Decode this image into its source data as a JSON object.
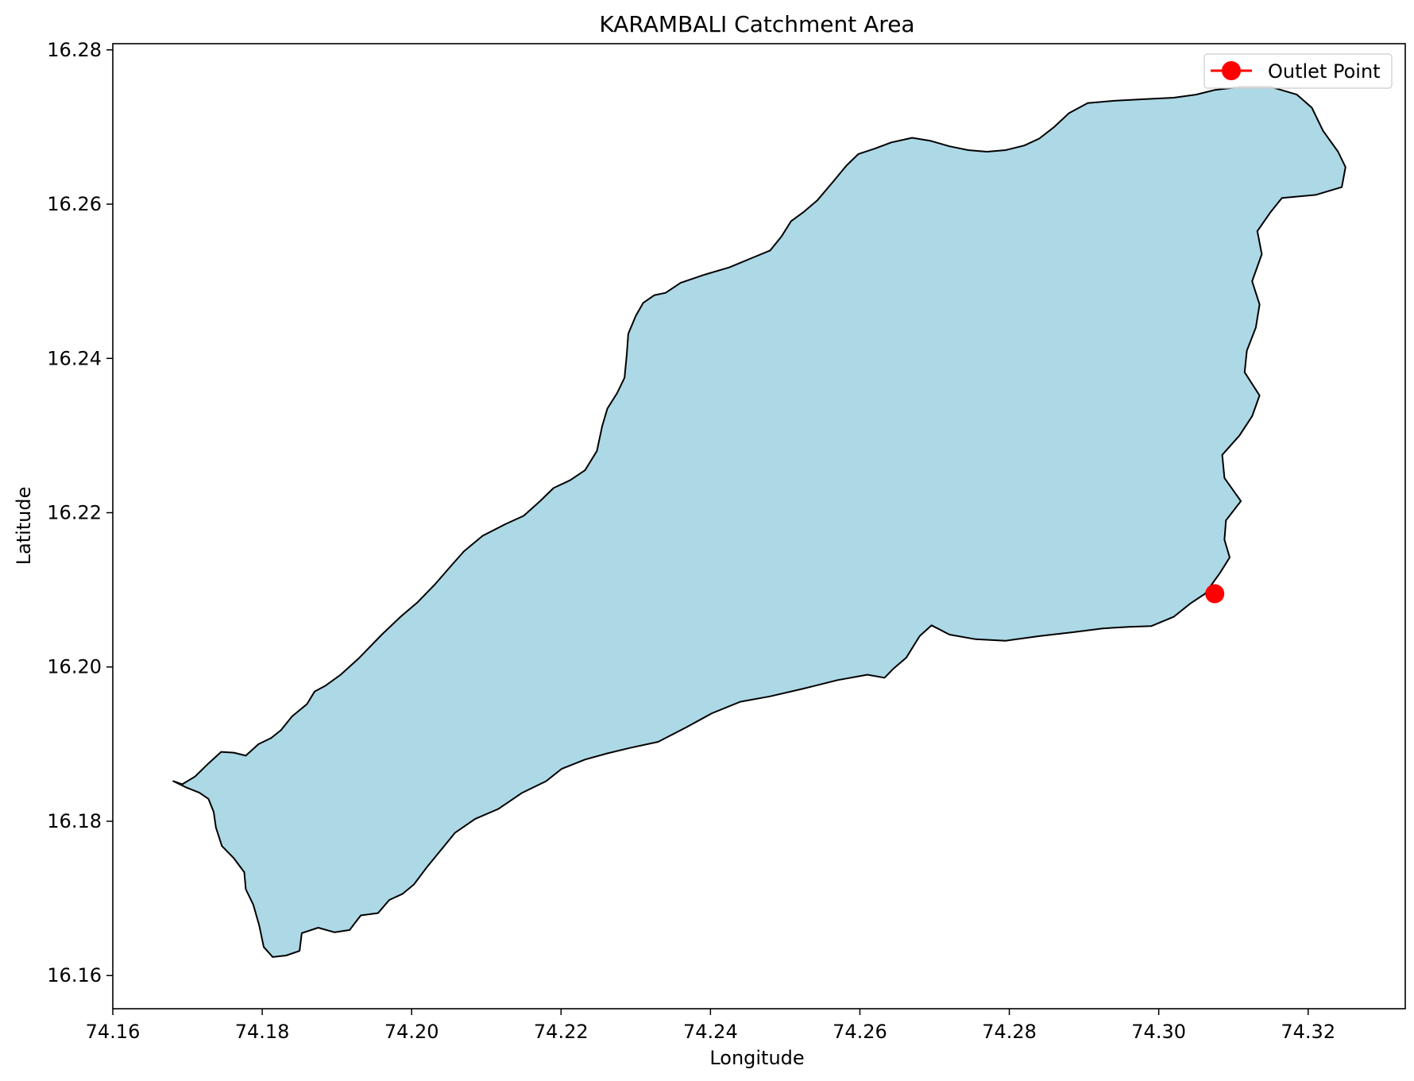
{
  "chart_data": {
    "type": "map",
    "title": "KARAMBALI Catchment Area",
    "xlabel": "Longitude",
    "ylabel": "Latitude",
    "xlim": [
      74.16,
      74.333
    ],
    "ylim": [
      16.1557,
      16.2808
    ],
    "x_ticks": [
      74.16,
      74.18,
      74.2,
      74.22,
      74.24,
      74.26,
      74.28,
      74.3,
      74.32
    ],
    "y_ticks": [
      16.16,
      16.18,
      16.2,
      16.22,
      16.24,
      16.26,
      16.28
    ],
    "x_tick_labels": [
      "74.16",
      "74.18",
      "74.20",
      "74.22",
      "74.24",
      "74.26",
      "74.28",
      "74.30",
      "74.32"
    ],
    "y_tick_labels": [
      "16.16",
      "16.18",
      "16.20",
      "16.22",
      "16.24",
      "16.26",
      "16.28"
    ],
    "fill_color": "#add8e6",
    "edge_color": "#000000",
    "catchment_boundary": [
      [
        74.1681,
        16.1852
      ],
      [
        74.1698,
        16.1844
      ],
      [
        74.1716,
        16.1837
      ],
      [
        74.1728,
        16.1829
      ],
      [
        74.1735,
        16.1812
      ],
      [
        74.1738,
        16.1792
      ],
      [
        74.1746,
        16.1768
      ],
      [
        74.1762,
        16.1752
      ],
      [
        74.1776,
        16.1734
      ],
      [
        74.1778,
        16.1712
      ],
      [
        74.1788,
        16.1692
      ],
      [
        74.1796,
        16.1665
      ],
      [
        74.1802,
        16.1637
      ],
      [
        74.1814,
        16.1624
      ],
      [
        74.1832,
        16.1626
      ],
      [
        74.185,
        16.1632
      ],
      [
        74.1853,
        16.1655
      ],
      [
        74.1875,
        16.1662
      ],
      [
        74.1897,
        16.1656
      ],
      [
        74.1917,
        16.1659
      ],
      [
        74.1932,
        16.1678
      ],
      [
        74.1955,
        16.1681
      ],
      [
        74.197,
        16.1698
      ],
      [
        74.1988,
        16.1706
      ],
      [
        74.2003,
        16.1718
      ],
      [
        74.202,
        16.174
      ],
      [
        74.2037,
        16.176
      ],
      [
        74.2058,
        16.1785
      ],
      [
        74.2085,
        16.1803
      ],
      [
        74.2116,
        16.1816
      ],
      [
        74.2148,
        16.1837
      ],
      [
        74.218,
        16.1852
      ],
      [
        74.2201,
        16.1868
      ],
      [
        74.2232,
        16.188
      ],
      [
        74.2262,
        16.1888
      ],
      [
        74.2292,
        16.1895
      ],
      [
        74.233,
        16.1903
      ],
      [
        74.2368,
        16.1922
      ],
      [
        74.2402,
        16.194
      ],
      [
        74.244,
        16.1955
      ],
      [
        74.248,
        16.1962
      ],
      [
        74.2525,
        16.1972
      ],
      [
        74.257,
        16.1983
      ],
      [
        74.261,
        16.199
      ],
      [
        74.2633,
        16.1986
      ],
      [
        74.2645,
        16.1998
      ],
      [
        74.2662,
        16.2012
      ],
      [
        74.268,
        16.204
      ],
      [
        74.2696,
        16.2054
      ],
      [
        74.272,
        16.2042
      ],
      [
        74.2755,
        16.2036
      ],
      [
        74.2795,
        16.2034
      ],
      [
        74.284,
        16.204
      ],
      [
        74.2885,
        16.2045
      ],
      [
        74.2925,
        16.205
      ],
      [
        74.296,
        16.2052
      ],
      [
        74.299,
        16.2053
      ],
      [
        74.302,
        16.2065
      ],
      [
        74.3042,
        16.2082
      ],
      [
        74.3062,
        16.2095
      ],
      [
        74.3082,
        16.2122
      ],
      [
        74.3095,
        16.2142
      ],
      [
        74.3088,
        16.2165
      ],
      [
        74.309,
        16.219
      ],
      [
        74.311,
        16.2215
      ],
      [
        74.3088,
        16.2245
      ],
      [
        74.3085,
        16.2275
      ],
      [
        74.3108,
        16.23
      ],
      [
        74.3125,
        16.2325
      ],
      [
        74.3135,
        16.2352
      ],
      [
        74.3115,
        16.2382
      ],
      [
        74.3118,
        16.241
      ],
      [
        74.313,
        16.244
      ],
      [
        74.3135,
        16.247
      ],
      [
        74.3125,
        16.25
      ],
      [
        74.3138,
        16.2535
      ],
      [
        74.3132,
        16.2565
      ],
      [
        74.315,
        16.259
      ],
      [
        74.3165,
        16.2608
      ],
      [
        74.321,
        16.2612
      ],
      [
        74.3245,
        16.2622
      ],
      [
        74.325,
        16.2648
      ],
      [
        74.324,
        16.2668
      ],
      [
        74.322,
        16.2695
      ],
      [
        74.3205,
        16.2725
      ],
      [
        74.3185,
        16.2742
      ],
      [
        74.315,
        16.2752
      ],
      [
        74.311,
        16.2752
      ],
      [
        74.3075,
        16.2748
      ],
      [
        74.305,
        16.2742
      ],
      [
        74.302,
        16.2738
      ],
      [
        74.298,
        16.2736
      ],
      [
        74.294,
        16.2734
      ],
      [
        74.2905,
        16.2731
      ],
      [
        74.288,
        16.2718
      ],
      [
        74.286,
        16.27
      ],
      [
        74.284,
        16.2685
      ],
      [
        74.282,
        16.2676
      ],
      [
        74.2795,
        16.267
      ],
      [
        74.277,
        16.2668
      ],
      [
        74.2745,
        16.267
      ],
      [
        74.272,
        16.2675
      ],
      [
        74.2695,
        16.2682
      ],
      [
        74.267,
        16.2686
      ],
      [
        74.2642,
        16.268
      ],
      [
        74.262,
        16.2672
      ],
      [
        74.2598,
        16.2665
      ],
      [
        74.2582,
        16.265
      ],
      [
        74.2565,
        16.263
      ],
      [
        74.2543,
        16.2605
      ],
      [
        74.2525,
        16.259
      ],
      [
        74.2508,
        16.2578
      ],
      [
        74.2495,
        16.2558
      ],
      [
        74.248,
        16.254
      ],
      [
        74.2455,
        16.253
      ],
      [
        74.2425,
        16.2518
      ],
      [
        74.239,
        16.2508
      ],
      [
        74.236,
        16.2498
      ],
      [
        74.234,
        16.2485
      ],
      [
        74.2325,
        16.2482
      ],
      [
        74.231,
        16.2472
      ],
      [
        74.23,
        16.2455
      ],
      [
        74.229,
        16.2432
      ],
      [
        74.2288,
        16.2405
      ],
      [
        74.2285,
        16.2375
      ],
      [
        74.2275,
        16.2355
      ],
      [
        74.2262,
        16.2335
      ],
      [
        74.2255,
        16.2312
      ],
      [
        74.2248,
        16.228
      ],
      [
        74.2232,
        16.2255
      ],
      [
        74.2212,
        16.2242
      ],
      [
        74.219,
        16.2232
      ],
      [
        74.2172,
        16.2215
      ],
      [
        74.215,
        16.2196
      ],
      [
        74.2125,
        16.2185
      ],
      [
        74.2095,
        16.217
      ],
      [
        74.207,
        16.215
      ],
      [
        74.205,
        16.2128
      ],
      [
        74.2032,
        16.2108
      ],
      [
        74.2008,
        16.2084
      ],
      [
        74.1985,
        16.2065
      ],
      [
        74.196,
        16.2042
      ],
      [
        74.193,
        16.2012
      ],
      [
        74.1905,
        16.199
      ],
      [
        74.1885,
        16.1976
      ],
      [
        74.187,
        16.1968
      ],
      [
        74.186,
        16.1952
      ],
      [
        74.184,
        16.1936
      ],
      [
        74.1825,
        16.1918
      ],
      [
        74.1812,
        16.1908
      ],
      [
        74.1795,
        16.19
      ],
      [
        74.1778,
        16.1885
      ],
      [
        74.1762,
        16.1889
      ],
      [
        74.1745,
        16.189
      ],
      [
        74.1728,
        16.1875
      ],
      [
        74.171,
        16.1858
      ],
      [
        74.1693,
        16.1848
      ],
      [
        74.1681,
        16.1852
      ]
    ],
    "outlet_point": {
      "lon": 74.3075,
      "lat": 16.2095
    },
    "outlet_color": "#ff0000",
    "legend": {
      "label": "Outlet Point",
      "location": "upper right"
    }
  }
}
